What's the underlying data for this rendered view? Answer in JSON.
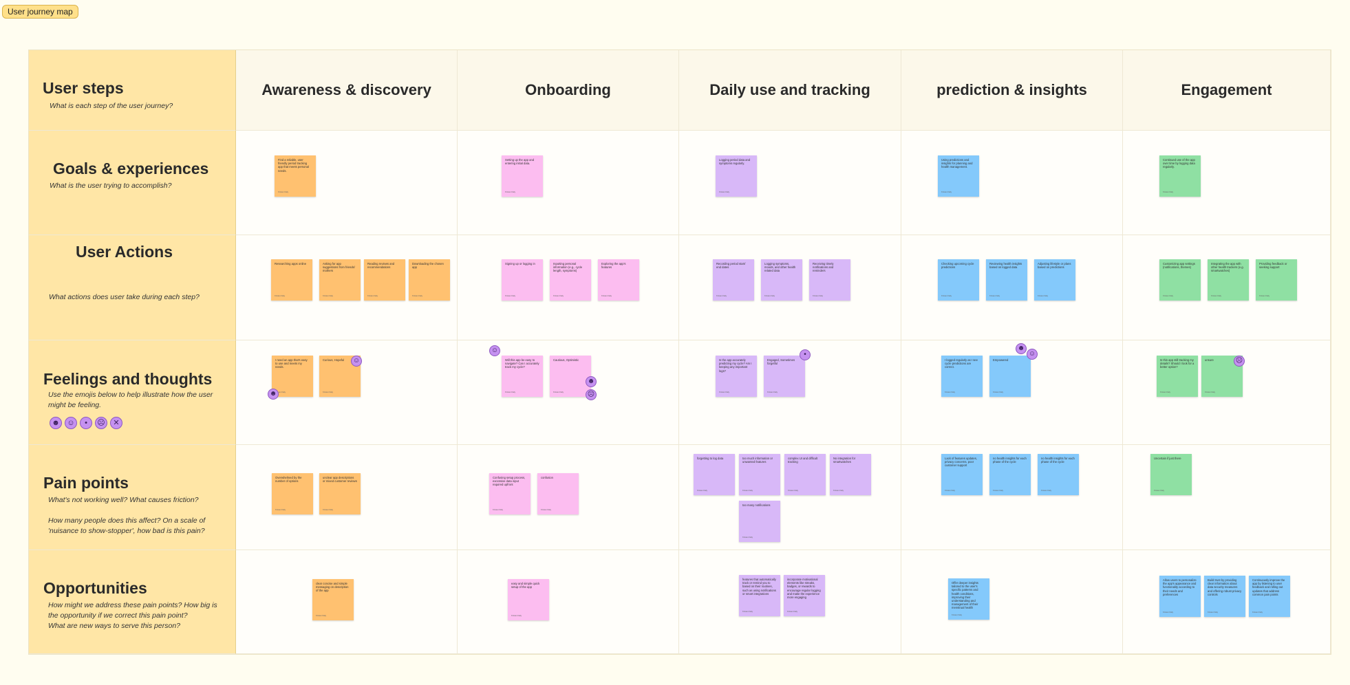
{
  "board": {
    "title": "User journey map"
  },
  "columns": [
    "Awareness & discovery",
    "Onboarding",
    "Daily use and tracking",
    "prediction & insights",
    "Engagement"
  ],
  "rows": {
    "steps": {
      "title": "User steps",
      "prompt": "What is each step of the user journey?"
    },
    "goals": {
      "title": "Goals & experiences",
      "prompt": "What is the user trying to accomplish?"
    },
    "actions": {
      "title": "User Actions",
      "prompt": "What actions does user take during each step?"
    },
    "feelings": {
      "title": "Feelings and thoughts",
      "prompt": "Use the emojis below to help illustrate how the user might be feeling."
    },
    "pains": {
      "title": "Pain points",
      "prompt": "What's not working well? What causes friction?",
      "prompt2": "How many people does this affect? On a scale of 'nuisance to show-stopper', how bad is this pain?"
    },
    "opps": {
      "title": "Opportunities",
      "prompt": "How might we address these pain points? How big is the opportunity if we correct this pain point?",
      "prompt2": "What are new ways to serve this person?"
    }
  },
  "emoji_legend": [
    "very-happy",
    "happy",
    "neutral",
    "sad",
    "angry"
  ],
  "sticky_author": "Kristen Daly",
  "stickies": {
    "goals": [
      "Find a reliable, user friendly period tracking app that meets personal needs.",
      "Setting up the app and entering initial data.",
      "Logging period data and symptoms regularly.",
      "Using predictions and insights for planning and health management.",
      "Continued use of the app over time by logging data regularly."
    ],
    "actions": [
      [
        "Researching apps online",
        "Asking for app suggestions from friends/ mothers",
        "Reading reviews and recommendations",
        "Downloading the chosen app"
      ],
      [
        "Signing up or logging in",
        "Inputting personal information (e.g., cycle length, symptoms)",
        "Exploring the app's features"
      ],
      [
        "Recording period start/ end dates",
        "Logging symptoms, moods, and other health related data",
        "Receiving timely notifications and reminders"
      ],
      [
        "Checking upcoming cycle predictions",
        "Reviewing health insights based on logged data",
        "Adjusting lifestyle or plans based on predictions"
      ],
      [
        "Customizing app settings (notifications, themes)",
        "Integrating the app with other health trackers (e.g. smartwatches)",
        "Providing feedback or seeking support"
      ]
    ],
    "feelings": [
      [
        "I need an app that's easy to use and meets my needs.",
        "Curious, Hopeful"
      ],
      [
        "Will this app be easy to navigate? Can I accurately track my cycle?",
        "Cautious, Optimistic"
      ],
      [
        "Is the app accurately predicting my cycle? Am I keeping any important logs?",
        "Engaged, Sometimes forgetful"
      ],
      [
        "I logged regularly as I see cycle predictions are correct.",
        "Empowered"
      ],
      [
        "Is this app still tracking my details? Should I look for a better option?",
        "unsure"
      ]
    ],
    "pains": [
      [
        "Overwhelmed by the number of options",
        "unclear app descriptions or mixed customer reviews"
      ],
      [
        "Confusing setup process, excessive data input required upfront",
        "confusion"
      ],
      [
        "forgetting to log data",
        "too much information or unwanted features",
        "complex UI and difficult tracking",
        "No integration for smartwatches",
        "too many notifications"
      ],
      [
        "Lack of features updates, privacy concerns, poor customer support",
        "no health insights for each phase of the cycle",
        "no health insights for each phase of the cycle"
      ],
      [
        "Uncertain if just there"
      ]
    ],
    "opps": [
      [
        "clear concise and simple messaging on description of the app"
      ],
      [
        "easy and simple quick setup of the app"
      ],
      [
        "features that automatically track or remind you to based on their routines, such as using notifications or smart integrations",
        "incorporate motivational elements like streaks, badges, or rewards to encourage regular logging and make the experience more engaging"
      ],
      [
        "Offer deeper insights tailored to the user's specific patterns and health conditions, improving their understanding and management of their menstrual health"
      ],
      [
        "Allow users to personalize the app's appearance and functionality according to their needs and preferences",
        "Build trust by providing clear information about data security measures and offering robust privacy controls",
        "Continuously improve the app by listening to user feedback and rolling out updates that address common pain points"
      ]
    ]
  }
}
